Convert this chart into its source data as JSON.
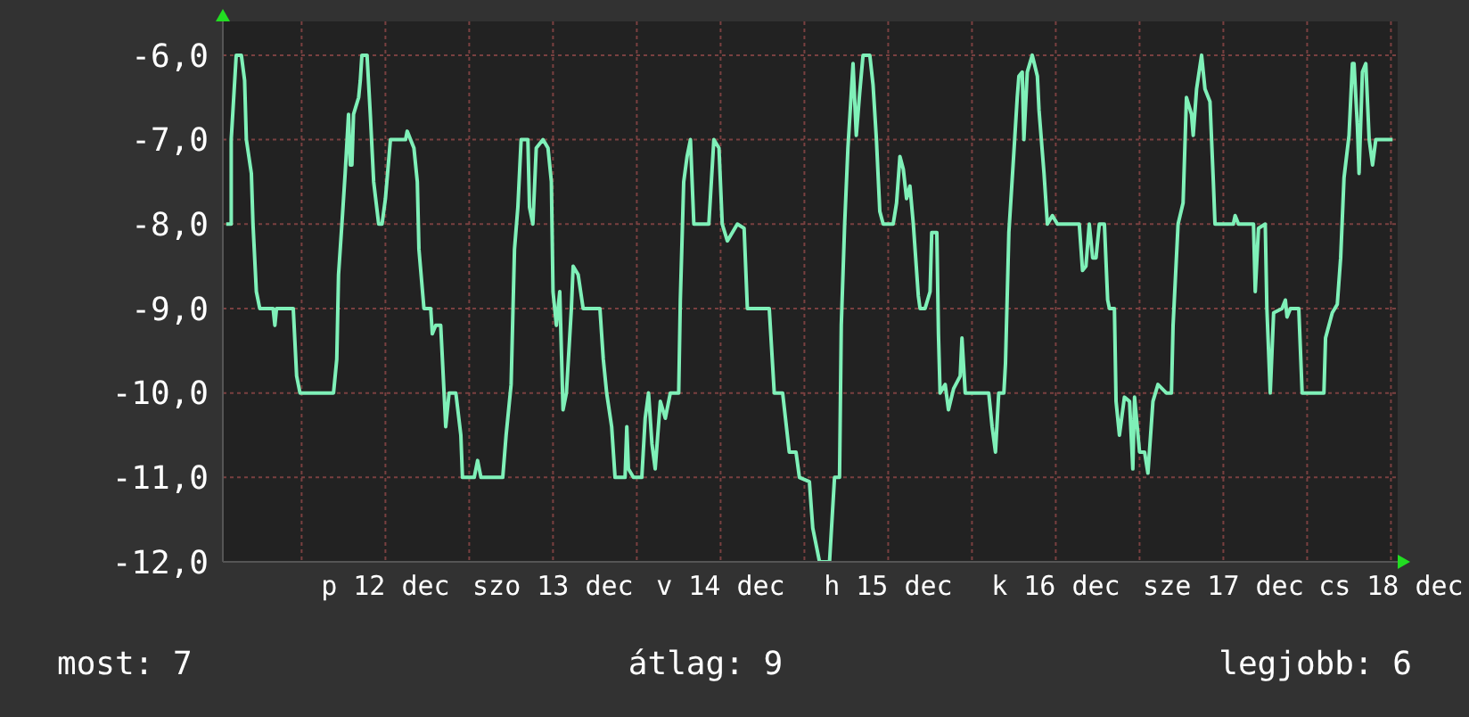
{
  "chart_data": {
    "type": "line",
    "x": [
      "--12-11T13:12",
      "--12-11T13:55",
      "--12-11T13:55",
      "--12-11T14:38",
      "--12-11T15:22",
      "--12-11T15:50",
      "--12-11T16:05",
      "--12-11T16:48",
      "--12-11T17:02",
      "--12-11T17:31",
      "--12-11T18:00",
      "--12-11T19:55",
      "--12-11T20:10",
      "--12-11T20:24",
      "--12-11T22:48",
      "--12-11T23:17",
      "--12-11T23:46",
      "--12-12T04:34",
      "--12-12T05:02",
      "--12-12T05:17",
      "--12-12T05:46",
      "--12-12T06:14",
      "--12-12T06:43",
      "--12-12T06:58",
      "--12-12T07:12",
      "--12-12T07:26",
      "--12-12T08:10",
      "--12-12T08:24",
      "--12-12T08:38",
      "--12-12T09:22",
      "--12-12T09:50",
      "--12-12T10:19",
      "--12-12T11:02",
      "--12-12T11:31",
      "--12-12T12:00",
      "--12-12T12:43",
      "--12-12T14:53",
      "--12-12T15:07",
      "--12-12T16:05",
      "--12-12T16:34",
      "--12-12T16:48",
      "--12-12T17:31",
      "--12-12T18:29",
      "--12-12T18:43",
      "--12-12T19:12",
      "--12-12T19:55",
      "--12-12T20:24",
      "--12-12T20:38",
      "--12-12T21:07",
      "--12-12T22:05",
      "--12-12T22:48",
      "--12-12T23:02",
      "--12-13T00:43",
      "--12-13T01:12",
      "--12-13T01:41",
      "--12-13T04:48",
      "--12-13T05:17",
      "--12-13T06:00",
      "--12-13T06:29",
      "--12-13T06:58",
      "--12-13T07:26",
      "--12-13T08:24",
      "--12-13T08:38",
      "--12-13T09:07",
      "--12-13T09:36",
      "--12-13T10:34",
      "--12-13T11:17",
      "--12-13T11:46",
      "--12-13T12:00",
      "--12-13T12:29",
      "--12-13T12:58",
      "--12-13T13:26",
      "--12-13T13:55",
      "--12-13T14:38",
      "--12-13T14:53",
      "--12-13T15:36",
      "--12-13T16:19",
      "--12-13T18:43",
      "--12-13T19:12",
      "--12-13T19:41",
      "--12-13T20:24",
      "--12-13T20:53",
      "--12-13T22:19",
      "--12-13T22:34",
      "--12-13T22:48",
      "--12-13T23:31",
      "--12-14T00:43",
      "--12-14T01:12",
      "--12-14T01:41",
      "--12-14T02:10",
      "--12-14T02:38",
      "--12-14T03:22",
      "--12-14T04:05",
      "--12-14T04:48",
      "--12-14T06:00",
      "--12-14T06:14",
      "--12-14T06:43",
      "--12-14T07:12",
      "--12-14T07:41",
      "--12-14T08:10",
      "--12-14T10:19",
      "--12-14T11:02",
      "--12-14T11:46",
      "--12-14T12:14",
      "--12-14T12:58",
      "--12-14T14:24",
      "--12-14T15:22",
      "--12-14T15:50",
      "--12-14T18:58",
      "--12-14T19:41",
      "--12-14T20:53",
      "--12-14T21:50",
      "--12-14T22:48",
      "--12-14T23:17",
      "--12-15T00:43",
      "--12-15T01:12",
      "--12-15T02:10",
      "--12-15T03:36",
      "--12-15T04:19",
      "--12-15T05:02",
      "--12-15T05:17",
      "--12-15T05:46",
      "--12-15T06:14",
      "--12-15T06:43",
      "--12-15T06:58",
      "--12-15T07:26",
      "--12-15T07:55",
      "--12-15T08:24",
      "--12-15T09:22",
      "--12-15T09:50",
      "--12-15T10:19",
      "--12-15T10:48",
      "--12-15T11:17",
      "--12-15T12:43",
      "--12-15T13:12",
      "--12-15T13:41",
      "--12-15T14:10",
      "--12-15T14:38",
      "--12-15T15:07",
      "--12-15T15:36",
      "--12-15T16:19",
      "--12-15T16:34",
      "--12-15T17:17",
      "--12-15T18:00",
      "--12-15T18:14",
      "--12-15T18:58",
      "--12-15T19:12",
      "--12-15T19:26",
      "--12-15T20:10",
      "--12-15T20:38",
      "--12-15T21:22",
      "--12-15T22:19",
      "--12-15T22:34",
      "--12-15T23:02",
      "--12-16T02:24",
      "--12-16T02:53",
      "--12-16T03:22",
      "--12-16T03:50",
      "--12-16T04:34",
      "--12-16T04:48",
      "--12-16T05:17",
      "--12-16T06:00",
      "--12-16T06:29",
      "--12-16T06:43",
      "--12-16T07:12",
      "--12-16T07:26",
      "--12-16T07:55",
      "--12-16T08:38",
      "--12-16T09:22",
      "--12-16T09:36",
      "--12-16T10:19",
      "--12-16T10:48",
      "--12-16T11:31",
      "--12-16T12:14",
      "--12-16T15:22",
      "--12-16T15:50",
      "--12-16T16:19",
      "--12-16T16:48",
      "--12-16T17:17",
      "--12-16T17:46",
      "--12-16T18:14",
      "--12-16T18:58",
      "--12-16T19:26",
      "--12-16T19:41",
      "--12-16T20:24",
      "--12-16T20:38",
      "--12-16T21:07",
      "--12-16T21:50",
      "--12-16T22:34",
      "--12-16T23:02",
      "--12-16T23:17",
      "--12-17T00:00",
      "--12-17T00:43",
      "--12-17T01:12",
      "--12-17T01:55",
      "--12-17T02:38",
      "--12-17T03:50",
      "--12-17T04:34",
      "--12-17T04:48",
      "--12-17T05:31",
      "--12-17T06:14",
      "--12-17T06:43",
      "--12-17T07:26",
      "--12-17T07:41",
      "--12-17T08:10",
      "--12-17T08:53",
      "--12-17T09:22",
      "--12-17T10:05",
      "--12-17T10:34",
      "--12-17T10:48",
      "--12-17T13:26",
      "--12-17T13:41",
      "--12-17T14:10",
      "--12-17T16:19",
      "--12-17T16:34",
      "--12-17T17:02",
      "--12-17T18:00",
      "--12-17T18:14",
      "--12-17T18:43",
      "--12-17T19:12",
      "--12-17T20:24",
      "--12-17T20:53",
      "--12-17T21:07",
      "--12-17T21:36",
      "--12-17T22:48",
      "--12-17T23:17",
      "--12-18T02:24",
      "--12-18T02:38",
      "--12-18T03:36",
      "--12-18T04:19",
      "--12-18T04:48",
      "--12-18T05:17",
      "--12-18T06:00",
      "--12-18T06:29",
      "--12-18T06:43",
      "--12-18T07:12",
      "--12-18T07:26",
      "--12-18T07:55",
      "--12-18T08:24",
      "--12-18T08:53",
      "--12-18T09:22",
      "--12-18T09:50",
      "--12-18T12:14"
    ],
    "values": [
      -8,
      -8,
      -7,
      -6,
      -6,
      -6.3,
      -7,
      -7.4,
      -8,
      -8.8,
      -9,
      -9,
      -9.2,
      -9,
      -9,
      -9.8,
      -10,
      -10,
      -9.6,
      -8.6,
      -8,
      -7.4,
      -6.7,
      -7.3,
      -7.3,
      -6.7,
      -6.5,
      -6.3,
      -6,
      -6,
      -6.7,
      -7.5,
      -8,
      -8,
      -7.7,
      -7,
      -7,
      -6.9,
      -7.1,
      -7.5,
      -8.3,
      -9,
      -9,
      -9.3,
      -9.2,
      -9.2,
      -10,
      -10.4,
      -10,
      -10,
      -10.5,
      -11,
      -11,
      -10.8,
      -11,
      -11,
      -10.5,
      -9.9,
      -8.3,
      -7.8,
      -7,
      -7,
      -7.8,
      -8,
      -7.1,
      -7,
      -7.1,
      -7.5,
      -8.8,
      -9.2,
      -8.8,
      -10.2,
      -10,
      -9,
      -8.5,
      -8.6,
      -9,
      -9,
      -9.6,
      -10,
      -10.4,
      -11,
      -11,
      -10.4,
      -10.9,
      -11,
      -11,
      -10.3,
      -10,
      -10.6,
      -10.9,
      -10.1,
      -10.3,
      -10,
      -10,
      -8.9,
      -7.5,
      -7.2,
      -7,
      -8,
      -8,
      -7,
      -7.1,
      -8,
      -8.2,
      -8,
      -8.05,
      -9,
      -9,
      -10,
      -10,
      -10.7,
      -10.7,
      -11,
      -11.05,
      -11.6,
      -12,
      -12,
      -11,
      -11,
      -9.2,
      -8,
      -7.1,
      -6.45,
      -6.1,
      -6.95,
      -6.45,
      -6,
      -6,
      -6.35,
      -7,
      -7.85,
      -8,
      -8,
      -7.75,
      -7.2,
      -7.35,
      -7.7,
      -7.55,
      -8,
      -8.85,
      -9,
      -9,
      -8.8,
      -8.1,
      -8.1,
      -9.3,
      -10,
      -9.9,
      -10.2,
      -9.95,
      -9.8,
      -9.35,
      -10,
      -10,
      -10.4,
      -10.7,
      -10,
      -10,
      -9.65,
      -8.1,
      -7.15,
      -6.5,
      -6.25,
      -6.2,
      -7,
      -6.2,
      -6,
      -6.25,
      -6.65,
      -7.4,
      -8,
      -7.9,
      -8,
      -8,
      -8.55,
      -8.5,
      -8,
      -8.4,
      -8.4,
      -8,
      -8,
      -8.9,
      -9,
      -9,
      -10.1,
      -10.5,
      -10.05,
      -10.1,
      -10.9,
      -10.05,
      -10.7,
      -10.7,
      -10.95,
      -10.1,
      -9.9,
      -10,
      -10,
      -9.2,
      -8,
      -7.75,
      -6.5,
      -6.7,
      -6.95,
      -6.4,
      -6,
      -6.4,
      -6.55,
      -7.5,
      -8,
      -8,
      -7.9,
      -8,
      -8,
      -8.8,
      -8.05,
      -8,
      -9,
      -10,
      -9.05,
      -9,
      -8.9,
      -9.1,
      -9,
      -9,
      -10,
      -10,
      -9.35,
      -9.05,
      -8.95,
      -8.4,
      -7.45,
      -6.95,
      -6.1,
      -6.1,
      -6.85,
      -7.4,
      -6.2,
      -6.1,
      -7,
      -7.3,
      -7,
      -7
    ],
    "color": "#7ff0b8",
    "xlim": [
      "--12-11T12:43",
      "--12-18T12:58"
    ],
    "xticks": [
      {
        "value": "--12-12T00:00",
        "label": null
      },
      {
        "value": "--12-12T12:00",
        "label": "p 12 dec"
      },
      {
        "value": "--12-13T00:00",
        "label": null
      },
      {
        "value": "--12-13T12:00",
        "label": "szo 13 dec"
      },
      {
        "value": "--12-14T00:00",
        "label": null
      },
      {
        "value": "--12-14T12:00",
        "label": "v 14 dec"
      },
      {
        "value": "--12-15T00:00",
        "label": null
      },
      {
        "value": "--12-15T12:00",
        "label": "h 15 dec"
      },
      {
        "value": "--12-16T00:00",
        "label": null
      },
      {
        "value": "--12-16T12:00",
        "label": "k 16 dec"
      },
      {
        "value": "--12-17T00:00",
        "label": null
      },
      {
        "value": "--12-17T12:00",
        "label": "sze 17 dec"
      },
      {
        "value": "--12-18T00:00",
        "label": null
      },
      {
        "value": "--12-18T12:00",
        "label": "cs 18 dec"
      }
    ],
    "ylim": [
      -12,
      -5.6
    ],
    "yticks": [
      {
        "value": -12,
        "label": "-12,0"
      },
      {
        "value": -11,
        "label": "-11,0"
      },
      {
        "value": -10,
        "label": "-10,0"
      },
      {
        "value": -9,
        "label": "-9,0"
      },
      {
        "value": -8,
        "label": "-8,0"
      },
      {
        "value": -7,
        "label": "-7,0"
      },
      {
        "value": -6,
        "label": "-6,0"
      }
    ],
    "grid": true,
    "annotations": [
      "most: 7",
      "átlag: 9",
      "legjobb: 6"
    ]
  }
}
